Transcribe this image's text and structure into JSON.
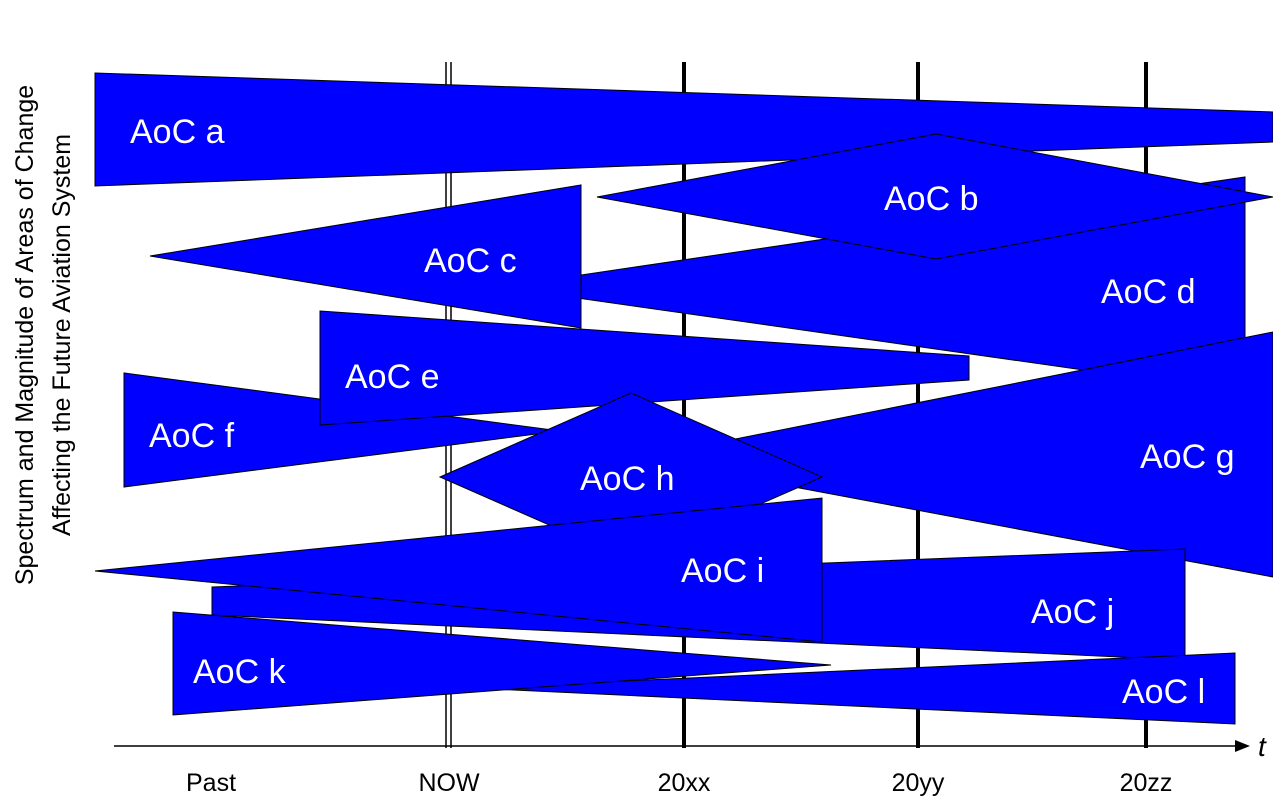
{
  "y_axis_label": {
    "line1": "Spectrum and Magnitude of Areas of Change",
    "line2": "Affecting the Future Aviation System"
  },
  "x_axis": {
    "variable": "t",
    "ticks": [
      "Past",
      "NOW",
      "20xx",
      "20yy",
      "20zz"
    ]
  },
  "areas": [
    "AoC a",
    "AoC b",
    "AoC c",
    "AoC d",
    "AoC e",
    "AoC f",
    "AoC g",
    "AoC h",
    "AoC i",
    "AoC j",
    "AoC k",
    "AoC l"
  ],
  "colors": {
    "shape_fill": "#0000ff",
    "shape_label": "#ffffff",
    "lines": "#000000"
  }
}
